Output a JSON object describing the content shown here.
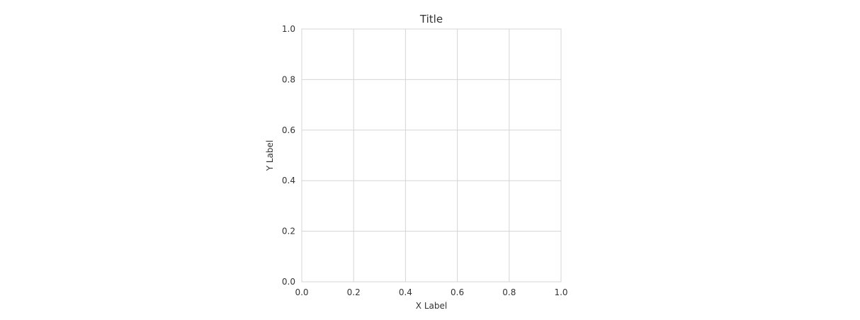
{
  "chart_data": {
    "type": "scatter",
    "title": "Title",
    "xlabel": "X Label",
    "ylabel": "Y Label",
    "xlim": [
      0.0,
      1.0
    ],
    "ylim": [
      0.0,
      1.0
    ],
    "x_ticks": [
      0.0,
      0.2,
      0.4,
      0.6,
      0.8,
      1.0
    ],
    "y_ticks": [
      0.0,
      0.2,
      0.4,
      0.6,
      0.8,
      1.0
    ],
    "x_tick_labels": [
      "0.0",
      "0.2",
      "0.4",
      "0.6",
      "0.8",
      "1.0"
    ],
    "y_tick_labels": [
      "0.0",
      "0.2",
      "0.4",
      "0.6",
      "0.8",
      "1.0"
    ],
    "grid": true,
    "series": []
  }
}
